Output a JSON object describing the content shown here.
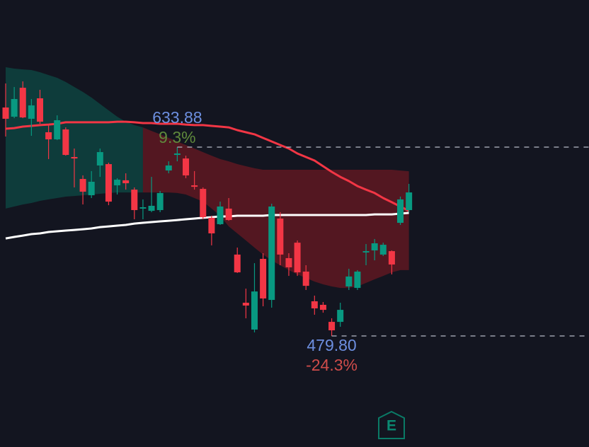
{
  "chart_data": {
    "type": "candlestick",
    "up_color": "#089981",
    "down_color": "#f23645",
    "ylim": [
      389.2,
      753.9
    ],
    "open": [
      666.2,
      658.7,
      682.3,
      657.0,
      673.7,
      646.0,
      640.2,
      648.3,
      625.8,
      607.9,
      594.6,
      618.9,
      620.0,
      602.7,
      606.8,
      599.2,
      583.7,
      581.9,
      582.5,
      614.8,
      627.5,
      624.6,
      602.7,
      599.8,
      576.2,
      571.0,
      583.7,
      546.2,
      506.9,
      485.0,
      542.7,
      509.2,
      575.6,
      543.3,
      555.9,
      532.3,
      508.1,
      505.2,
      491.3,
      491.3,
      520.2,
      519.0,
      547.9,
      549.6,
      546.2,
      549.0,
      572.1,
      582.5
    ],
    "high": [
      685.8,
      682.9,
      687.5,
      673.1,
      680.6,
      652.9,
      659.8,
      650.0,
      632.7,
      610.8,
      614.3,
      632.7,
      621.2,
      608.5,
      612.5,
      601.0,
      591.2,
      609.6,
      598.1,
      622.3,
      633.88,
      626.9,
      614.3,
      601.0,
      577.9,
      589.4,
      592.3,
      551.9,
      518.4,
      539.2,
      547.3,
      587.7,
      580.8,
      547.3,
      557.7,
      537.5,
      512.7,
      507.5,
      494.2,
      506.9,
      534.6,
      533.5,
      554.8,
      558.9,
      555.9,
      549.6,
      593.5,
      603.9
    ],
    "low": [
      642.5,
      657.5,
      657.5,
      643.1,
      652.9,
      624.1,
      639.6,
      626.9,
      601.0,
      587.1,
      592.3,
      609.6,
      586.5,
      595.2,
      599.2,
      575.0,
      575.0,
      580.8,
      580.8,
      612.5,
      622.3,
      608.5,
      599.2,
      575.0,
      553.7,
      570.4,
      573.8,
      531.2,
      494.2,
      482.7,
      504.0,
      502.9,
      537.5,
      528.8,
      528.8,
      517.3,
      497.1,
      498.8,
      479.8,
      487.3,
      517.3,
      517.3,
      537.5,
      541.5,
      545.0,
      530.0,
      570.4,
      580.8
    ],
    "close": [
      657.0,
      673.1,
      658.1,
      667.9,
      654.6,
      640.2,
      655.8,
      627.5,
      624.6,
      597.5,
      605.6,
      629.8,
      589.4,
      607.3,
      604.4,
      582.5,
      584.8,
      586.0,
      596.4,
      618.9,
      628.7,
      610.8,
      601.5,
      576.7,
      563.5,
      585.4,
      574.4,
      531.7,
      504.6,
      516.1,
      510.4,
      585.4,
      546.2,
      535.8,
      531.7,
      520.7,
      502.3,
      501.1,
      484.4,
      501.1,
      528.3,
      532.3,
      549.0,
      555.4,
      554.2,
      538.1,
      591.2,
      596.9
    ],
    "bands": [
      {
        "color": "#0e4a44",
        "upper": [
          699.1,
          697.9,
          697.3,
          696.8,
          695.0,
          692.7,
          690.4,
          687.0,
          682.9,
          678.9,
          674.3,
          669.1,
          663.9,
          658.7,
          654.6,
          651.8,
          650.0,
          null,
          null,
          null,
          null,
          null,
          null,
          null,
          null,
          null,
          null,
          null,
          null,
          null,
          null,
          null,
          null,
          null,
          null,
          null,
          null,
          null,
          null,
          null,
          null,
          null,
          null,
          null,
          null,
          null,
          null,
          null
        ],
        "lower": [
          583.7,
          585.4,
          587.1,
          588.3,
          590.0,
          591.2,
          592.3,
          593.5,
          594.0,
          594.6,
          595.2,
          595.8,
          596.4,
          596.9,
          596.9,
          596.9,
          596.9,
          null,
          null,
          null,
          null,
          null,
          null,
          null,
          null,
          null,
          null,
          null,
          null,
          null,
          null,
          null,
          null,
          null,
          null,
          null,
          null,
          null,
          null,
          null,
          null,
          null,
          null,
          null,
          null,
          null,
          null,
          null
        ]
      },
      {
        "color": "#6a1822",
        "upper": [
          null,
          null,
          null,
          null,
          null,
          null,
          null,
          null,
          null,
          null,
          null,
          null,
          null,
          null,
          null,
          null,
          650.0,
          647.1,
          644.3,
          641.4,
          638.5,
          635.6,
          632.7,
          629.8,
          626.9,
          624.1,
          622.3,
          620.0,
          618.3,
          616.6,
          615.4,
          615.4,
          615.4,
          615.4,
          615.4,
          615.4,
          615.4,
          615.4,
          615.4,
          615.4,
          615.4,
          615.4,
          615.4,
          615.4,
          615.4,
          615.4,
          614.8,
          614.2
        ],
        "lower": [
          null,
          null,
          null,
          null,
          null,
          null,
          null,
          null,
          null,
          null,
          null,
          null,
          null,
          null,
          null,
          null,
          596.9,
          596.9,
          596.9,
          596.9,
          596.4,
          595.2,
          592.3,
          589.4,
          583.7,
          577.9,
          569.2,
          563.5,
          557.7,
          551.9,
          546.2,
          541.5,
          537.5,
          533.5,
          530.0,
          527.1,
          524.2,
          521.9,
          520.2,
          519.0,
          519.0,
          520.2,
          523.1,
          526.0,
          528.8,
          531.7,
          533.5,
          533.5
        ]
      }
    ],
    "lines": [
      {
        "color": "#f23645",
        "values": [
          648.9,
          649.4,
          650.6,
          651.2,
          651.8,
          652.3,
          652.9,
          654.1,
          654.1,
          654.1,
          654.1,
          654.1,
          654.1,
          654.6,
          654.6,
          654.1,
          653.5,
          653.5,
          652.9,
          652.9,
          652.9,
          652.3,
          651.8,
          651.8,
          651.2,
          650.6,
          650.0,
          647.7,
          646.0,
          644.3,
          641.4,
          638.5,
          635.6,
          632.7,
          628.7,
          625.8,
          622.9,
          618.3,
          613.7,
          609.6,
          606.2,
          602.1,
          599.2,
          596.4,
          592.3,
          588.9,
          585.4,
          581.9
        ]
      },
      {
        "color": "#ffffff",
        "values": [
          559.4,
          560.6,
          561.7,
          562.9,
          563.5,
          564.6,
          565.2,
          565.8,
          566.3,
          566.9,
          567.5,
          568.6,
          569.2,
          569.8,
          570.4,
          571.5,
          572.1,
          572.7,
          573.3,
          573.8,
          574.4,
          575.0,
          575.6,
          576.2,
          576.7,
          577.3,
          577.3,
          577.9,
          577.9,
          577.9,
          577.9,
          578.5,
          578.5,
          578.5,
          578.5,
          578.5,
          578.5,
          578.5,
          578.5,
          578.5,
          578.5,
          578.5,
          578.5,
          579.0,
          579.0,
          579.0,
          579.6,
          580.2
        ]
      }
    ],
    "high_marker": {
      "value": 633.88,
      "label": "633.88",
      "change_label": "9.3%"
    },
    "low_marker": {
      "value": 479.8,
      "label": "479.80",
      "change_label": "-24.3%"
    },
    "events": [
      {
        "label": "E"
      }
    ]
  }
}
